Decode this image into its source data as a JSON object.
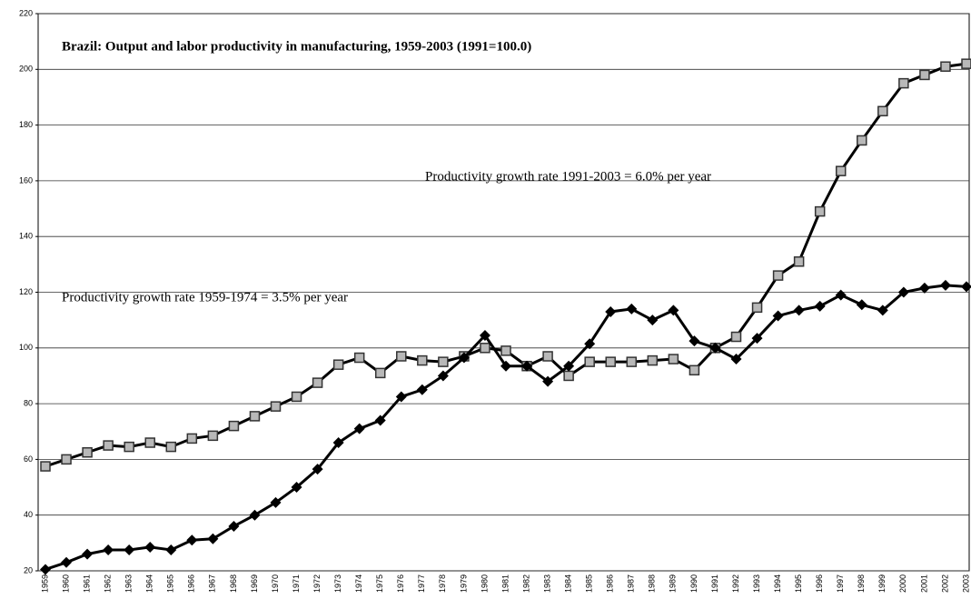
{
  "chart_data": {
    "type": "line",
    "title": "Brazil: Output and labor productivity in manufacturing, 1959-2003 (1991=100.0)",
    "annotations": [
      "Productivity growth rate 1991-2003 = 6.0% per year",
      "Productivity growth rate 1959-1974 = 3.5% per year"
    ],
    "categories": [
      "1959",
      "1960",
      "1961",
      "1962",
      "1963",
      "1964",
      "1965",
      "1966",
      "1967",
      "1968",
      "1969",
      "1970",
      "1971",
      "1972",
      "1973",
      "1974",
      "1975",
      "1976",
      "1977",
      "1978",
      "1979",
      "1980",
      "1981",
      "1982",
      "1983",
      "1984",
      "1985",
      "1986",
      "1987",
      "1988",
      "1989",
      "1990",
      "1991",
      "1992",
      "1993",
      "1994",
      "1995",
      "1996",
      "1997",
      "1998",
      "1999",
      "2000",
      "2001",
      "2002",
      "2003"
    ],
    "series": [
      {
        "color": "#000000",
        "marker": "diamond",
        "values": [
          20.5,
          23,
          26,
          27.5,
          27.5,
          28.5,
          27.5,
          31,
          31.5,
          36,
          40,
          44.5,
          50,
          56.5,
          66,
          71,
          74,
          82.5,
          85,
          90,
          96.5,
          104.5,
          93.5,
          93.5,
          88,
          93.5,
          101.5,
          113,
          114,
          110,
          113.5,
          102.5,
          100,
          96,
          103.5,
          111.5,
          113.5,
          115,
          119,
          115.5,
          113.5,
          120,
          121.5,
          122.5,
          122
        ]
      },
      {
        "color": "#b8b8b8",
        "marker": "square",
        "values": [
          57.5,
          60,
          62.5,
          65,
          64.5,
          66,
          64.5,
          67.5,
          68.5,
          72,
          75.5,
          79,
          82.5,
          87.5,
          94,
          96.5,
          91,
          97,
          95.5,
          95,
          97,
          100,
          99,
          93.5,
          97,
          90,
          95,
          95,
          95,
          95.5,
          96,
          92,
          100,
          104,
          114.5,
          126,
          131,
          149,
          163.5,
          174.5,
          185,
          195,
          198,
          201,
          202
        ]
      }
    ],
    "ylim": [
      20,
      220
    ],
    "yticks": [
      20,
      40,
      60,
      80,
      100,
      120,
      140,
      160,
      180,
      200,
      220
    ],
    "grid": true
  }
}
